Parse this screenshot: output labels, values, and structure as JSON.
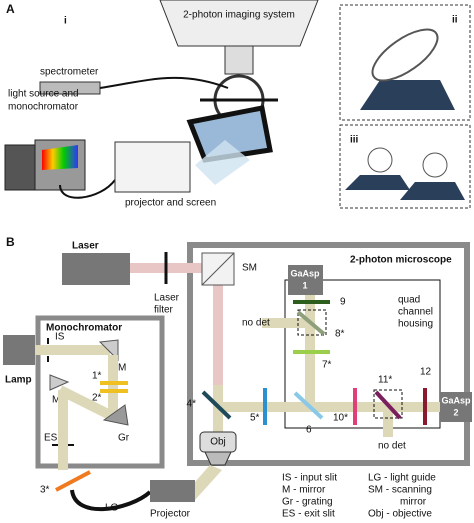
{
  "panel_a": {
    "label": "A",
    "sub_i": "i",
    "imaging_system": "2-photon imaging system",
    "spectrometer": "spectrometer",
    "light_source": [
      "light source and",
      "monochromator"
    ],
    "projector_screen": "projector and screen",
    "sub_ii": "ii",
    "sub_iii": "iii"
  },
  "panel_b": {
    "label": "B",
    "laser": "Laser",
    "laser_filter": [
      "Laser",
      "filter"
    ],
    "sm": "SM",
    "microscope": "2-photon microscope",
    "gaasp1": [
      "GaAsp",
      "1"
    ],
    "gaasp2": [
      "GaAsp",
      "2"
    ],
    "housing": [
      "quad",
      "channel",
      "housing"
    ],
    "no_det_top": "no det",
    "no_det_bottom": "no det",
    "monochromator": "Monochromator",
    "lamp": "Lamp",
    "is": "IS",
    "m1": "M",
    "m2": "M",
    "gr": "Gr",
    "es": "ES",
    "obj": "Obj",
    "lg": "LG",
    "projector": "Projector",
    "elements": {
      "e1": "1*",
      "e2": "2*",
      "e3": "3*",
      "e4": "4*",
      "e5": "5*",
      "e6": "6",
      "e7": "7*",
      "e8": "8*",
      "e9": "9",
      "e10": "10*",
      "e11": "11*",
      "e12": "12"
    },
    "legend_left": [
      "IS - input slit",
      "M - mirror",
      "Gr - grating",
      "ES - exit slit"
    ],
    "legend_right": [
      "LG - light guide",
      "SM - scanning",
      "mirror",
      "Obj - objective"
    ]
  }
}
